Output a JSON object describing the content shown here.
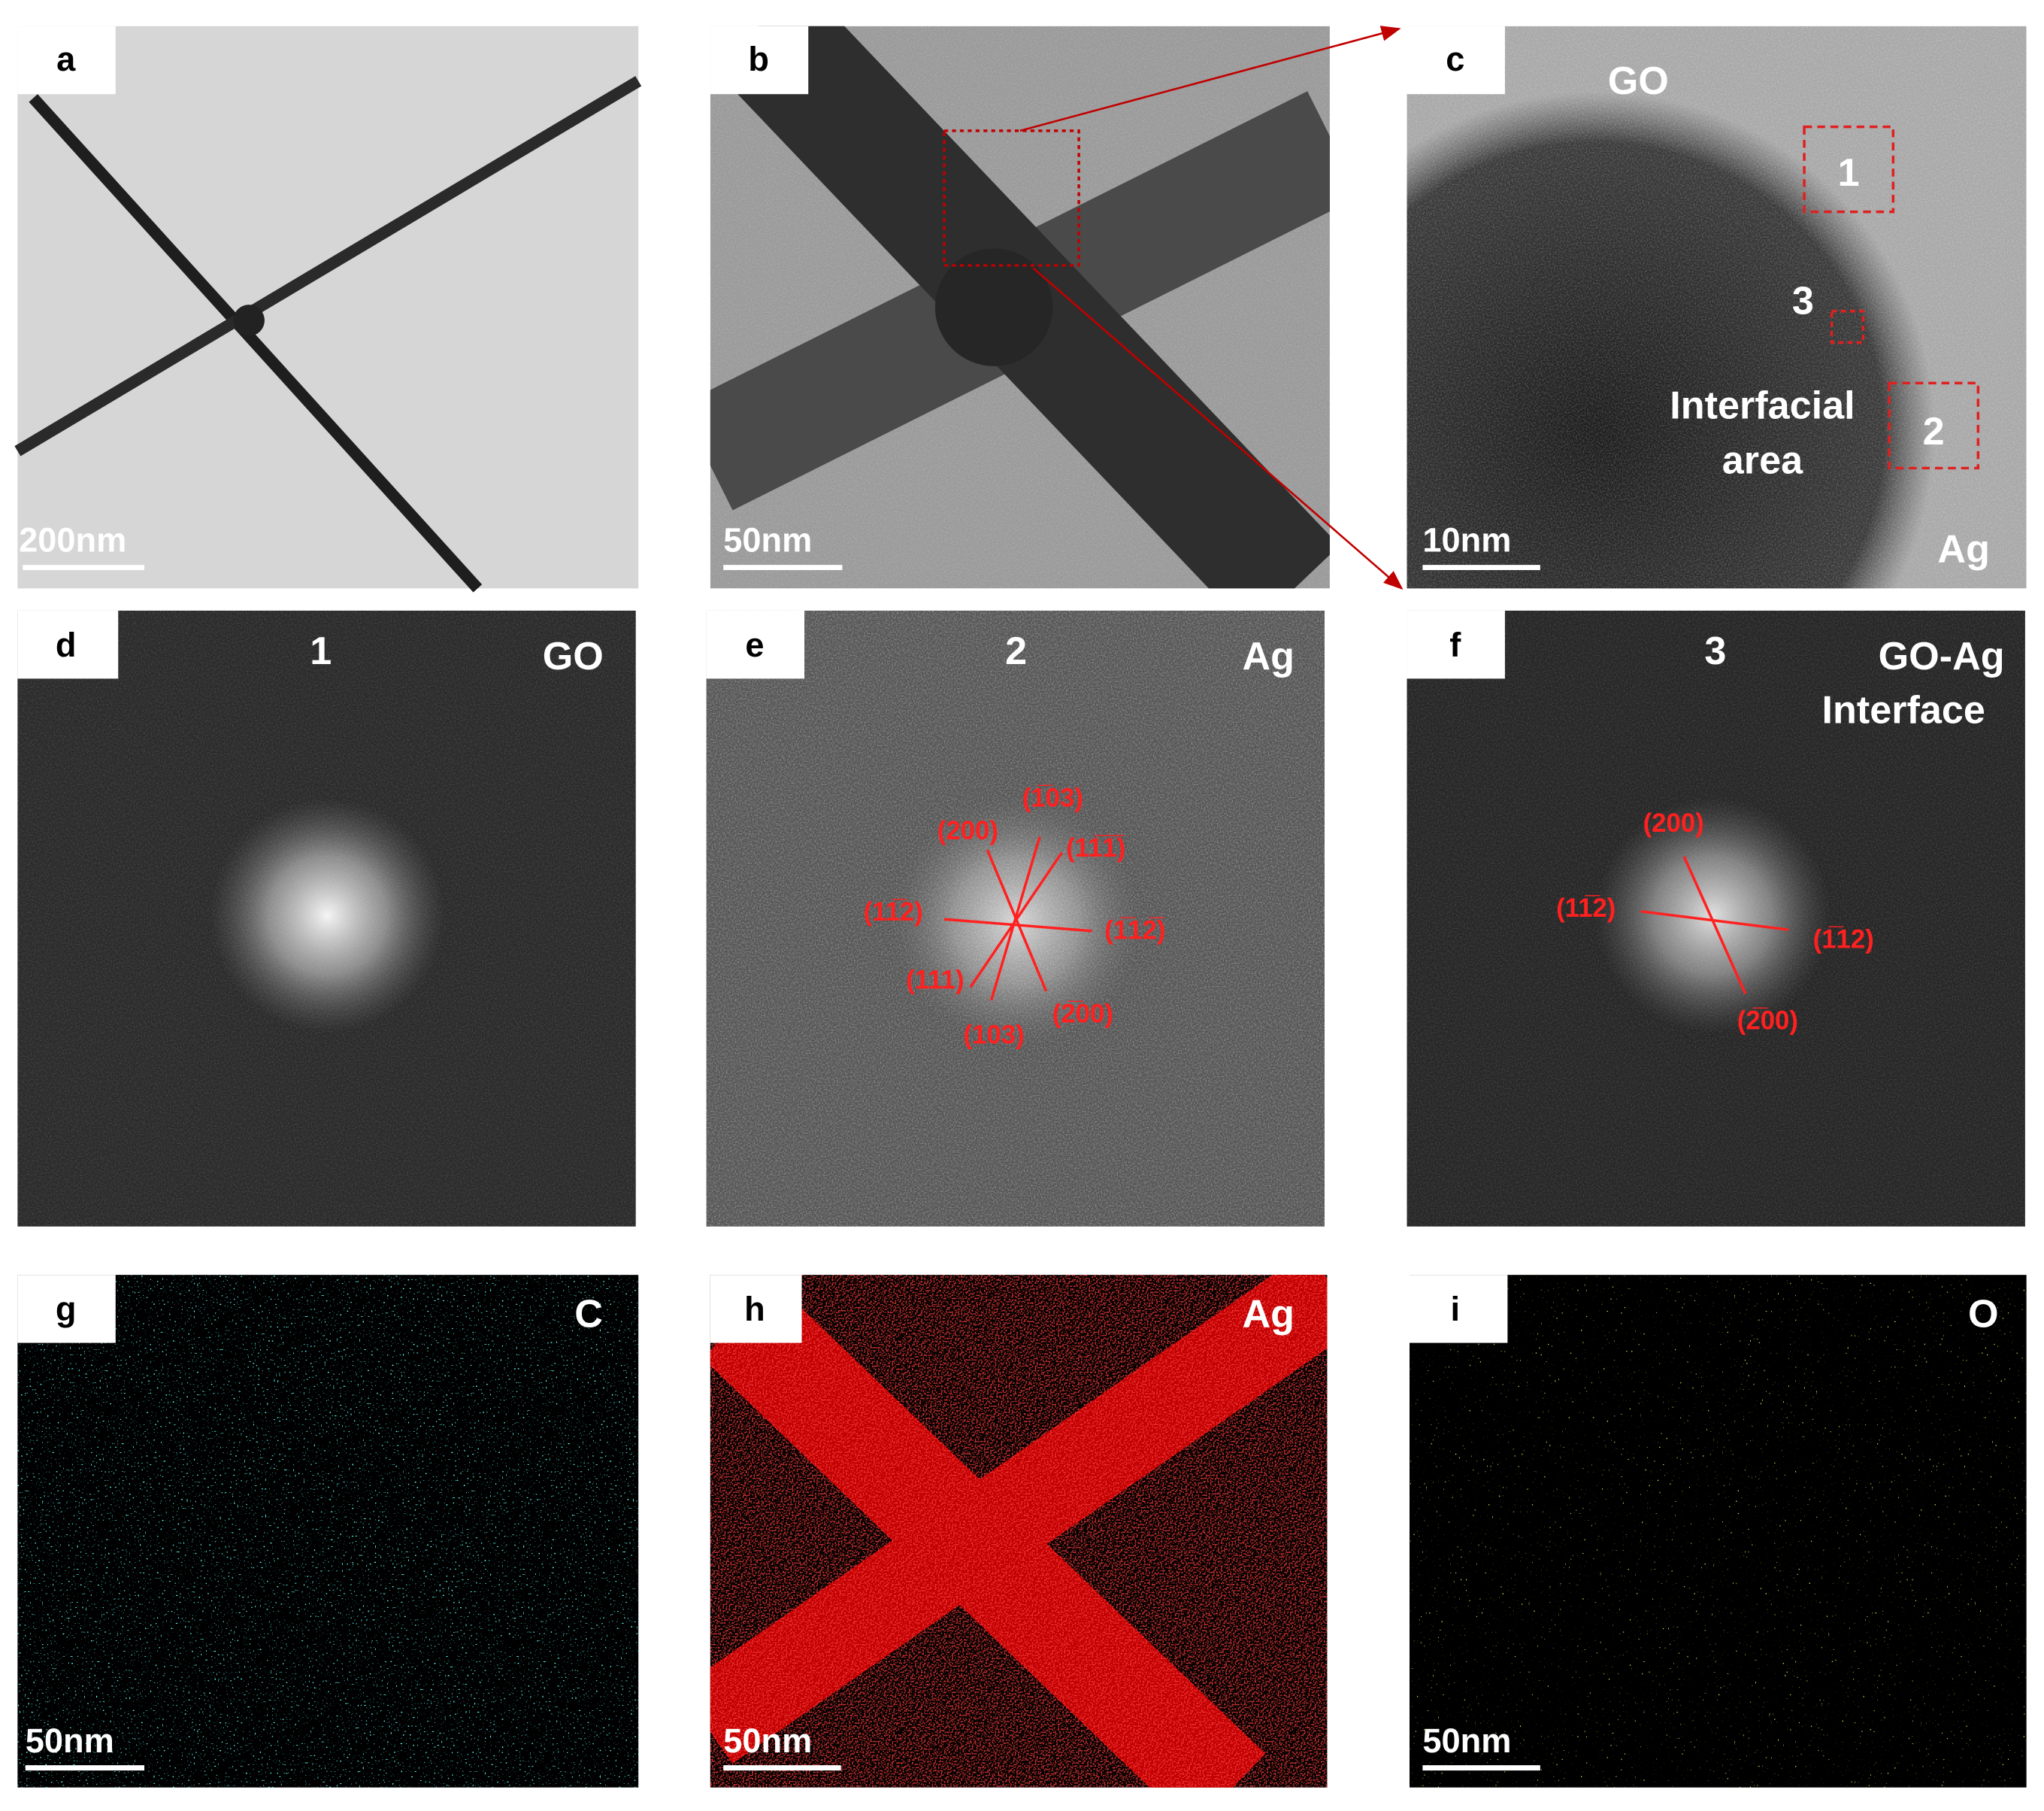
{
  "panels": [
    {
      "letter": "a",
      "scale_bar": "200nm"
    },
    {
      "letter": "b",
      "scale_bar": "50nm"
    },
    {
      "letter": "c",
      "scale_bar": "10nm",
      "labels": [
        "GO",
        "1",
        "3",
        "Interfacial",
        "area",
        "2",
        "Ag"
      ]
    },
    {
      "letter": "d",
      "labels": [
        "1",
        "GO"
      ]
    },
    {
      "letter": "e",
      "labels": [
        "2",
        "Ag"
      ],
      "indices": [
        "(200)",
        "(1̅03)",
        "(11̅1̅)",
        "(11̅2)",
        "(1̅12̅)",
        "(111)",
        "(103)",
        "(2̅00)"
      ]
    },
    {
      "letter": "f",
      "labels": [
        "3",
        "GO-Ag",
        "Interface"
      ],
      "indices": [
        "(200)",
        "(11̅2)",
        "(1̅12)",
        "(2̅00)"
      ]
    },
    {
      "letter": "g",
      "scale_bar": "50nm",
      "labels": [
        "C"
      ]
    },
    {
      "letter": "h",
      "scale_bar": "50nm",
      "labels": [
        "Ag"
      ]
    },
    {
      "letter": "i",
      "scale_bar": "50nm",
      "labels": [
        "O"
      ]
    }
  ]
}
